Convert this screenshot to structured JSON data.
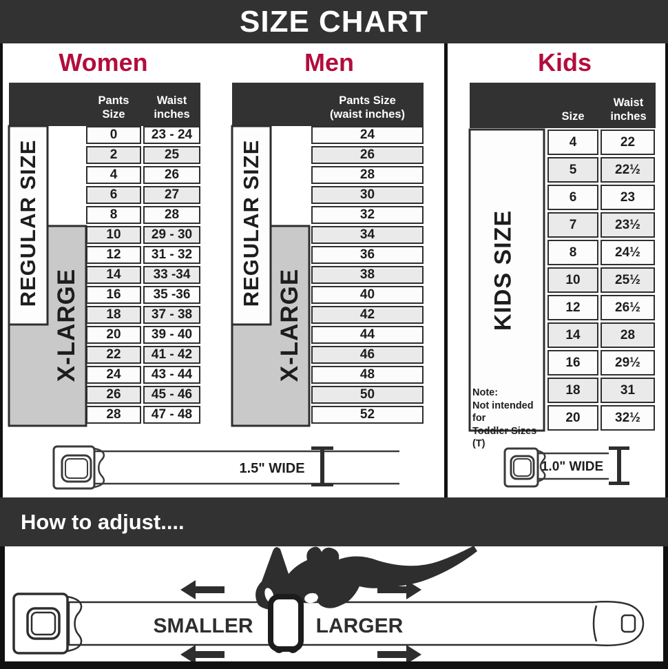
{
  "colors": {
    "accent": "#b30d3d",
    "dark": "#323232",
    "grid": "#2e2e2e",
    "gray-box": "#c9c9c9",
    "alt-row": "#eaeaea"
  },
  "title": "SIZE CHART",
  "women": {
    "heading": "Women",
    "pants_size_header": "Pants Size",
    "waist_header_line1": "Waist",
    "waist_header_line2": "inches",
    "regular_label": "REGULAR SIZE",
    "xlarge_label": "X-LARGE",
    "rows": [
      [
        "0",
        "23 - 24"
      ],
      [
        "2",
        "25"
      ],
      [
        "4",
        "26"
      ],
      [
        "6",
        "27"
      ],
      [
        "8",
        "28"
      ],
      [
        "10",
        "29 - 30"
      ],
      [
        "12",
        "31 - 32"
      ],
      [
        "14",
        "33 -34"
      ],
      [
        "16",
        "35 -36"
      ],
      [
        "18",
        "37 - 38"
      ],
      [
        "20",
        "39 - 40"
      ],
      [
        "22",
        "41 - 42"
      ],
      [
        "24",
        "43 - 44"
      ],
      [
        "26",
        "45 - 46"
      ],
      [
        "28",
        "47 - 48"
      ]
    ],
    "belt_width_label": "1.5\" WIDE"
  },
  "men": {
    "heading": "Men",
    "header_line1": "Pants Size",
    "header_line2": "(waist inches)",
    "regular_label": "REGULAR SIZE",
    "xlarge_label": "X-LARGE",
    "rows": [
      "24",
      "26",
      "28",
      "30",
      "32",
      "34",
      "36",
      "38",
      "40",
      "42",
      "44",
      "46",
      "48",
      "50",
      "52"
    ]
  },
  "kids": {
    "heading": "Kids",
    "size_header": "Size",
    "waist_header_line1": "Waist",
    "waist_header_line2": "inches",
    "side_label": "KIDS SIZE",
    "note_lines": [
      "Note:",
      "Not intended for",
      "Toddler Sizes (T)"
    ],
    "rows": [
      [
        "4",
        "22"
      ],
      [
        "5",
        "22½"
      ],
      [
        "6",
        "23"
      ],
      [
        "7",
        "23½"
      ],
      [
        "8",
        "24½"
      ],
      [
        "10",
        "25½"
      ],
      [
        "12",
        "26½"
      ],
      [
        "14",
        "28"
      ],
      [
        "16",
        "29½"
      ],
      [
        "18",
        "31"
      ],
      [
        "20",
        "32½"
      ]
    ],
    "belt_width_label": "1.0\" WIDE"
  },
  "adjust": {
    "heading": "How to adjust....",
    "smaller_label": "SMALLER",
    "larger_label": "LARGER"
  }
}
